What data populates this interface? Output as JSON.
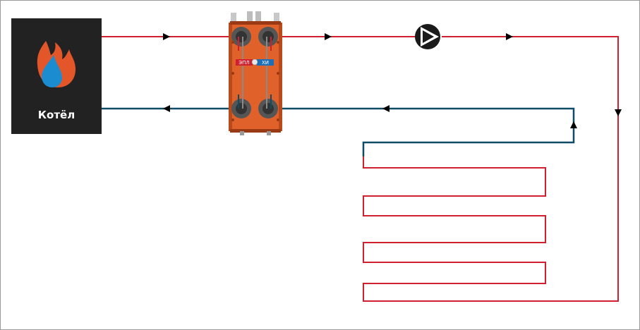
{
  "boiler": {
    "label": "Котёл"
  },
  "heat_exchanger": {
    "brand_left": "ЭПЛ",
    "brand_right": "ХИ"
  },
  "colors": {
    "supply": "#d01f2f",
    "return": "#0f4d66",
    "boiler_bg": "#222222",
    "flame_outer": "#e2562a",
    "flame_inner": "#1a8ccf",
    "exchanger_body": "#e0622a",
    "pump": "#1a1a1a"
  }
}
